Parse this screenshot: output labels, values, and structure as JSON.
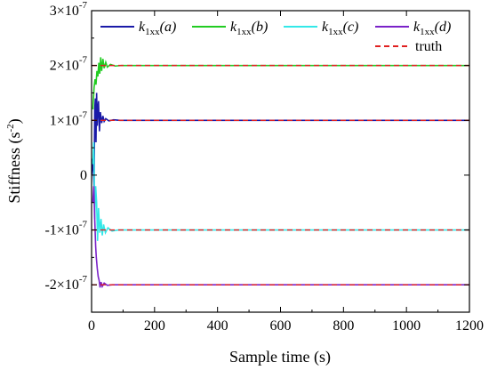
{
  "chart_data": {
    "type": "line",
    "xlabel": "Sample time (s)",
    "ylabel_main": "Stiffness (s",
    "ylabel_exp": "-2",
    "ylabel_close": ")",
    "xlim": [
      0,
      1200
    ],
    "ylim": [
      -2.5e-07,
      3e-07
    ],
    "x_ticks": [
      0,
      200,
      400,
      600,
      800,
      1000,
      1200
    ],
    "x_tick_labels": [
      "0",
      "200",
      "400",
      "600",
      "800",
      "1000",
      "1200"
    ],
    "y_ticks": [
      {
        "value": 3e-07,
        "mant": "3×10",
        "exp": "-7"
      },
      {
        "value": 2e-07,
        "mant": "2×10",
        "exp": "-7"
      },
      {
        "value": 1e-07,
        "mant": "1×10",
        "exp": "-7"
      },
      {
        "value": 0,
        "mant": "0",
        "exp": ""
      },
      {
        "value": -1e-07,
        "mant": "-1×10",
        "exp": "-7"
      },
      {
        "value": -2e-07,
        "mant": "-2×10",
        "exp": "-7"
      }
    ],
    "grid": false,
    "legend_position": "top",
    "series": [
      {
        "name_k": "k",
        "name_sub": "1xx",
        "name_arg": "(a)",
        "color": "#1a1aa8",
        "target": 1e-07,
        "points": [
          [
            0,
            0
          ],
          [
            4,
            3e-08
          ],
          [
            8,
            -2e-08
          ],
          [
            10,
            1.2e-07
          ],
          [
            12,
            1.4e-07
          ],
          [
            14,
            6e-08
          ],
          [
            16,
            1.5e-07
          ],
          [
            18,
            9e-08
          ],
          [
            20,
            1.2e-07
          ],
          [
            22,
            1.35e-07
          ],
          [
            25,
            8e-08
          ],
          [
            28,
            1.15e-07
          ],
          [
            32,
            9.5e-08
          ],
          [
            36,
            1.08e-07
          ],
          [
            40,
            9.8e-08
          ],
          [
            45,
            1.03e-07
          ],
          [
            55,
            9.9e-08
          ],
          [
            70,
            1.01e-07
          ],
          [
            90,
            1e-07
          ],
          [
            1200,
            1e-07
          ]
        ]
      },
      {
        "name_k": "k",
        "name_sub": "1xx",
        "name_arg": "(b)",
        "color": "#22cc22",
        "target": 2e-07,
        "points": [
          [
            4,
            1.2e-07
          ],
          [
            8,
            1.6e-07
          ],
          [
            11,
            1.75e-07
          ],
          [
            14,
            1.65e-07
          ],
          [
            17,
            1.9e-07
          ],
          [
            20,
            1.8e-07
          ],
          [
            23,
            2.05e-07
          ],
          [
            26,
            1.85e-07
          ],
          [
            29,
            2.15e-07
          ],
          [
            32,
            1.9e-07
          ],
          [
            36,
            2.12e-07
          ],
          [
            40,
            1.95e-07
          ],
          [
            45,
            2.06e-07
          ],
          [
            50,
            1.97e-07
          ],
          [
            60,
            2.02e-07
          ],
          [
            75,
            1.99e-07
          ],
          [
            95,
            2e-07
          ],
          [
            1200,
            2e-07
          ]
        ]
      },
      {
        "name_k": "k",
        "name_sub": "1xx",
        "name_arg": "(c)",
        "color": "#33e8e8",
        "target": -1e-07,
        "points": [
          [
            4,
            2e-08
          ],
          [
            7,
            6e-08
          ],
          [
            10,
            -8e-08
          ],
          [
            13,
            -2e-08
          ],
          [
            16,
            -5e-08
          ],
          [
            19,
            -1.2e-07
          ],
          [
            22,
            -6e-08
          ],
          [
            26,
            -1.05e-07
          ],
          [
            30,
            -8e-08
          ],
          [
            34,
            -1.1e-07
          ],
          [
            38,
            -9e-08
          ],
          [
            44,
            -1.05e-07
          ],
          [
            52,
            -9.6e-08
          ],
          [
            65,
            -1.02e-07
          ],
          [
            85,
            -1e-07
          ],
          [
            1200,
            -1e-07
          ]
        ]
      },
      {
        "name_k": "k",
        "name_sub": "1xx",
        "name_arg": "(d)",
        "color": "#7a22c8",
        "target": -2e-07,
        "points": [
          [
            4,
            -5e-08
          ],
          [
            7,
            -2e-08
          ],
          [
            10,
            -8e-08
          ],
          [
            13,
            -1.3e-07
          ],
          [
            15,
            -1.5e-07
          ],
          [
            18,
            -1.7e-07
          ],
          [
            21,
            -1.85e-07
          ],
          [
            24,
            -1.92e-07
          ],
          [
            27,
            -2.05e-07
          ],
          [
            30,
            -1.95e-07
          ],
          [
            34,
            -2.03e-07
          ],
          [
            40,
            -1.97e-07
          ],
          [
            50,
            -2.01e-07
          ],
          [
            65,
            -2e-07
          ],
          [
            1200,
            -2e-07
          ]
        ]
      }
    ],
    "truth": {
      "name": "truth",
      "color": "#e02020",
      "values": [
        2e-07,
        1e-07,
        -1e-07,
        -2e-07
      ]
    }
  }
}
